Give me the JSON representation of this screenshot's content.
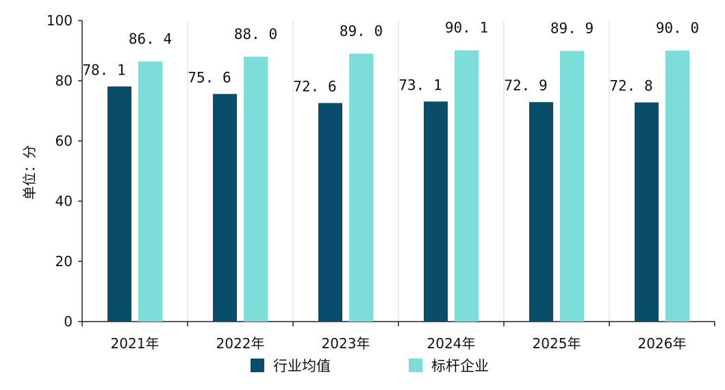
{
  "chart_data": {
    "type": "bar",
    "categories": [
      "2021年",
      "2022年",
      "2023年",
      "2024年",
      "2025年",
      "2026年"
    ],
    "series": [
      {
        "name": "行业均值",
        "values": [
          78.1,
          75.6,
          72.6,
          73.1,
          72.9,
          72.8
        ],
        "value_labels": [
          "78.1",
          "75.6",
          "72.6",
          "73.1",
          "72.9",
          "72.8"
        ],
        "color": "#0a4d6b"
      },
      {
        "name": "标杆企业",
        "values": [
          86.4,
          88.0,
          89.0,
          90.1,
          89.9,
          90.0
        ],
        "value_labels": [
          "86.4",
          "88.0",
          "89.0",
          "90.1",
          "89.9",
          "90.0"
        ],
        "color": "#7dddd8"
      }
    ],
    "ylabel": "单位：分",
    "ylim": [
      0,
      100
    ],
    "yticks": [
      0,
      20,
      40,
      60,
      80,
      100
    ],
    "grid": false,
    "legend": "bottom"
  }
}
